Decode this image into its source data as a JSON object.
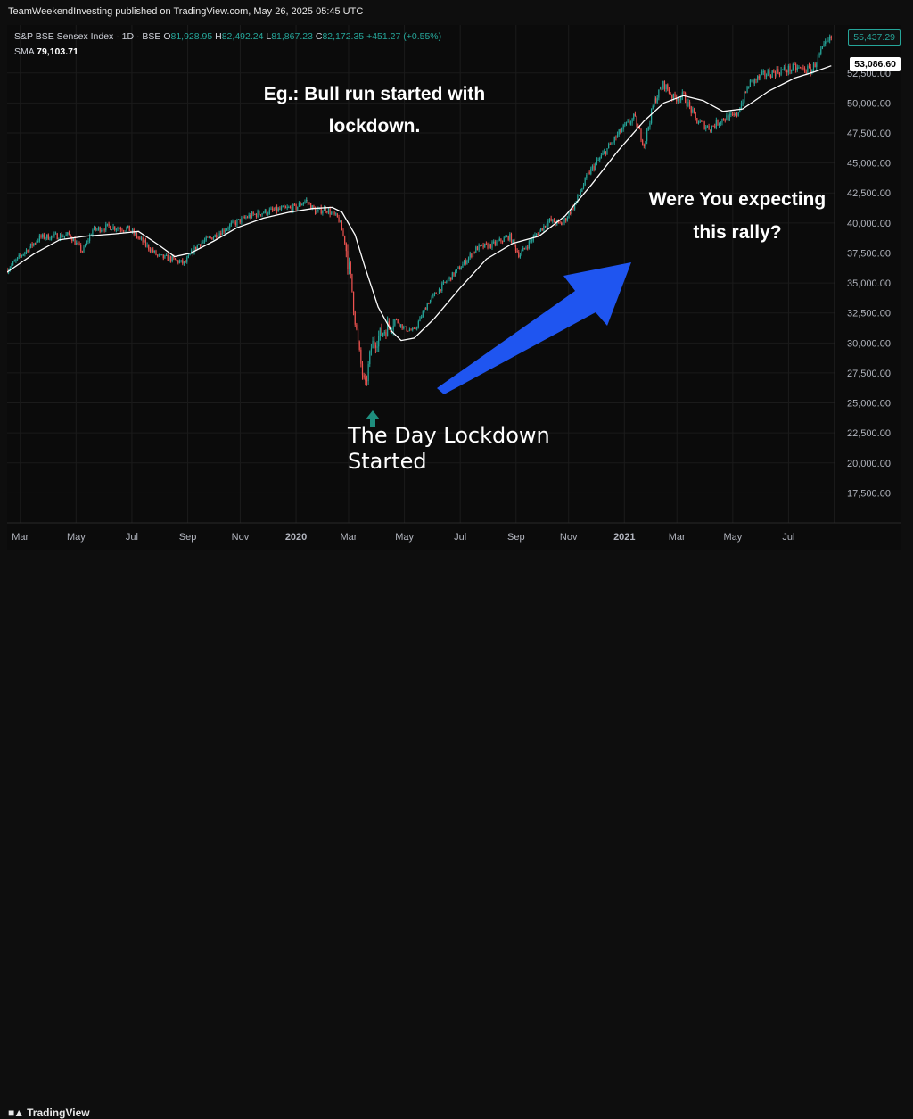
{
  "header": {
    "published": "TeamWeekendInvesting published on TradingView.com, May 26, 2025 05:45 UTC"
  },
  "legend": {
    "symbol": "S&P BSE Sensex Index · 1D · BSE",
    "open_key": "O",
    "open": "81,928.95",
    "high_key": "H",
    "high": "82,492.24",
    "low_key": "L",
    "low": "81,867.23",
    "close_key": "C",
    "close": "82,172.35",
    "change": "+451.27 (+0.55%)",
    "sma_label": "SMA",
    "sma_value": "79,103.71"
  },
  "price_tags": {
    "last": "55,437.29",
    "sma": "53,086.60"
  },
  "annotations": {
    "top_left": "Eg.: Bull run started with lockdown.",
    "right": "Were You expecting this rally?",
    "bottom": "The Day Lockdown Started"
  },
  "footer": {
    "brand": "TradingView"
  },
  "colors": {
    "up": "#26a69a",
    "down": "#ef5350",
    "sma": "#ffffff",
    "arrow": "#1f55f0",
    "marker": "#1e8e7e",
    "background": "#0b0b0b"
  },
  "chart_data": {
    "type": "candlestick",
    "title": "S&P BSE Sensex Index · 1D · BSE",
    "ylim": [
      15000,
      56500
    ],
    "y_ticks": [
      17500,
      20000,
      22500,
      25000,
      27500,
      30000,
      32500,
      35000,
      37500,
      40000,
      42500,
      45000,
      47500,
      50000,
      52500
    ],
    "y_tick_labels": [
      "17,500.00",
      "20,000.00",
      "22,500.00",
      "25,000.00",
      "27,500.00",
      "30,000.00",
      "32,500.00",
      "35,000.00",
      "37,500.00",
      "40,000.00",
      "42,500.00",
      "45,000.00",
      "47,500.00",
      "50,000.00",
      "52,500.00"
    ],
    "x_ticks": [
      {
        "t": 2019.16,
        "label": "Mar",
        "bold": false
      },
      {
        "t": 2019.33,
        "label": "May",
        "bold": false
      },
      {
        "t": 2019.5,
        "label": "Jul",
        "bold": false
      },
      {
        "t": 2019.67,
        "label": "Sep",
        "bold": false
      },
      {
        "t": 2019.83,
        "label": "Nov",
        "bold": false
      },
      {
        "t": 2020.0,
        "label": "2020",
        "bold": true
      },
      {
        "t": 2020.16,
        "label": "Mar",
        "bold": false
      },
      {
        "t": 2020.33,
        "label": "May",
        "bold": false
      },
      {
        "t": 2020.5,
        "label": "Jul",
        "bold": false
      },
      {
        "t": 2020.67,
        "label": "Sep",
        "bold": false
      },
      {
        "t": 2020.83,
        "label": "Nov",
        "bold": false
      },
      {
        "t": 2021.0,
        "label": "2021",
        "bold": true
      },
      {
        "t": 2021.16,
        "label": "Mar",
        "bold": false
      },
      {
        "t": 2021.33,
        "label": "May",
        "bold": false
      },
      {
        "t": 2021.5,
        "label": "Jul",
        "bold": false
      }
    ],
    "xlim": [
      2019.12,
      2021.64
    ],
    "price_path": [
      [
        2019.12,
        36100
      ],
      [
        2019.17,
        37500
      ],
      [
        2019.22,
        38800
      ],
      [
        2019.27,
        38900
      ],
      [
        2019.31,
        39000
      ],
      [
        2019.35,
        37600
      ],
      [
        2019.38,
        39400
      ],
      [
        2019.43,
        39700
      ],
      [
        2019.49,
        39500
      ],
      [
        2019.53,
        38500
      ],
      [
        2019.58,
        37200
      ],
      [
        2019.62,
        37000
      ],
      [
        2019.66,
        36600
      ],
      [
        2019.7,
        38200
      ],
      [
        2019.75,
        38900
      ],
      [
        2019.8,
        39800
      ],
      [
        2019.85,
        40500
      ],
      [
        2019.9,
        40900
      ],
      [
        2019.95,
        41100
      ],
      [
        2020.0,
        41300
      ],
      [
        2020.03,
        41900
      ],
      [
        2020.06,
        40900
      ],
      [
        2020.09,
        41200
      ],
      [
        2020.13,
        40300
      ],
      [
        2020.15,
        38300
      ],
      [
        2020.17,
        34500
      ],
      [
        2020.19,
        29500
      ],
      [
        2020.21,
        26100
      ],
      [
        2020.23,
        29800
      ],
      [
        2020.26,
        30800
      ],
      [
        2020.3,
        32000
      ],
      [
        2020.33,
        31200
      ],
      [
        2020.36,
        31000
      ],
      [
        2020.4,
        33300
      ],
      [
        2020.45,
        34900
      ],
      [
        2020.5,
        36300
      ],
      [
        2020.55,
        37900
      ],
      [
        2020.6,
        38200
      ],
      [
        2020.65,
        38900
      ],
      [
        2020.68,
        37300
      ],
      [
        2020.72,
        38700
      ],
      [
        2020.77,
        40200
      ],
      [
        2020.81,
        39900
      ],
      [
        2020.85,
        41600
      ],
      [
        2020.89,
        44100
      ],
      [
        2020.94,
        45900
      ],
      [
        2020.99,
        47700
      ],
      [
        2021.03,
        48800
      ],
      [
        2021.06,
        46500
      ],
      [
        2021.09,
        50100
      ],
      [
        2021.12,
        51600
      ],
      [
        2021.15,
        50400
      ],
      [
        2021.18,
        50600
      ],
      [
        2021.22,
        48500
      ],
      [
        2021.26,
        47900
      ],
      [
        2021.3,
        48700
      ],
      [
        2021.34,
        48900
      ],
      [
        2021.38,
        51600
      ],
      [
        2021.43,
        52400
      ],
      [
        2021.48,
        52700
      ],
      [
        2021.52,
        52900
      ],
      [
        2021.57,
        52700
      ],
      [
        2021.6,
        54300
      ],
      [
        2021.63,
        55400
      ]
    ],
    "sma_path": [
      [
        2019.12,
        35900
      ],
      [
        2019.2,
        37400
      ],
      [
        2019.28,
        38600
      ],
      [
        2019.36,
        38900
      ],
      [
        2019.45,
        39100
      ],
      [
        2019.52,
        39300
      ],
      [
        2019.58,
        38200
      ],
      [
        2019.63,
        37200
      ],
      [
        2019.68,
        37500
      ],
      [
        2019.75,
        38500
      ],
      [
        2019.82,
        39600
      ],
      [
        2019.9,
        40400
      ],
      [
        2019.98,
        40900
      ],
      [
        2020.05,
        41200
      ],
      [
        2020.11,
        41300
      ],
      [
        2020.14,
        40900
      ],
      [
        2020.18,
        39000
      ],
      [
        2020.21,
        36300
      ],
      [
        2020.25,
        33000
      ],
      [
        2020.29,
        31000
      ],
      [
        2020.32,
        30200
      ],
      [
        2020.36,
        30400
      ],
      [
        2020.42,
        32000
      ],
      [
        2020.5,
        34600
      ],
      [
        2020.58,
        37000
      ],
      [
        2020.66,
        38300
      ],
      [
        2020.74,
        38900
      ],
      [
        2020.82,
        40600
      ],
      [
        2020.9,
        43200
      ],
      [
        2020.98,
        46000
      ],
      [
        2021.06,
        48500
      ],
      [
        2021.12,
        50000
      ],
      [
        2021.18,
        50600
      ],
      [
        2021.24,
        50200
      ],
      [
        2021.3,
        49300
      ],
      [
        2021.36,
        49500
      ],
      [
        2021.44,
        51000
      ],
      [
        2021.52,
        52100
      ],
      [
        2021.58,
        52600
      ],
      [
        2021.63,
        53100
      ]
    ]
  }
}
